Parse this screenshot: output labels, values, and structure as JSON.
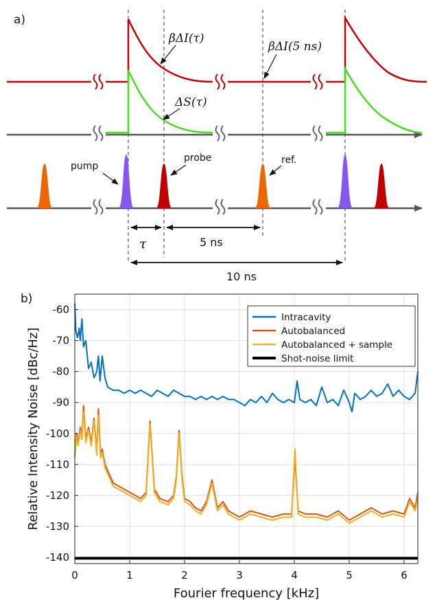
{
  "panel_a": {
    "label": "a)",
    "labels": {
      "dI_tau": "βΔI(τ)",
      "dI_5ns": "βΔI(5 ns)",
      "dS_tau": "ΔS(τ)",
      "pump": "pump",
      "probe": "probe",
      "ref": "ref.",
      "tau": "τ",
      "five_ns": "5 ns",
      "ten_ns": "10 ns"
    },
    "colors": {
      "dI_trace": "#c00000",
      "dS_trace": "#44dd22",
      "axis": "#555555",
      "pump_pulse": "#8855ee",
      "probe_pulse": "#c00000",
      "ref_pulse": "#ee6600"
    }
  },
  "chart_data": {
    "type": "line",
    "panel_label": "b)",
    "xlabel": "Fourier frequency [kHz]",
    "ylabel": "Relative Intensity Noise [dBc/Hz]",
    "xlim": [
      0,
      6.25
    ],
    "ylim": [
      -142,
      -55
    ],
    "xticks": [
      "0",
      "1",
      "2",
      "3",
      "4",
      "5",
      "6"
    ],
    "yticks": [
      "-60",
      "-70",
      "-80",
      "-90",
      "-100",
      "-110",
      "-120",
      "-130",
      "-140"
    ],
    "grid": true,
    "legend_position": "top-right",
    "series": [
      {
        "name": "Intracavity",
        "color": "#0072bd",
        "x": [
          0,
          0.02,
          0.05,
          0.08,
          0.1,
          0.13,
          0.16,
          0.2,
          0.25,
          0.3,
          0.35,
          0.4,
          0.43,
          0.46,
          0.5,
          0.55,
          0.6,
          0.7,
          0.8,
          0.9,
          1.0,
          1.1,
          1.2,
          1.3,
          1.4,
          1.5,
          1.6,
          1.7,
          1.8,
          1.9,
          2.0,
          2.1,
          2.2,
          2.3,
          2.4,
          2.5,
          2.6,
          2.7,
          2.8,
          2.9,
          3.0,
          3.1,
          3.2,
          3.3,
          3.4,
          3.5,
          3.6,
          3.7,
          3.8,
          3.9,
          4.0,
          4.05,
          4.1,
          4.2,
          4.3,
          4.4,
          4.5,
          4.6,
          4.7,
          4.8,
          4.9,
          5.0,
          5.05,
          5.1,
          5.2,
          5.3,
          5.4,
          5.5,
          5.6,
          5.7,
          5.8,
          5.9,
          6.0,
          6.1,
          6.2,
          6.25
        ],
        "values": [
          -58,
          -67,
          -69,
          -66,
          -70,
          -63,
          -72,
          -70,
          -79,
          -77,
          -82,
          -80,
          -75,
          -83,
          -75,
          -82,
          -85,
          -86,
          -86,
          -87,
          -86,
          -87,
          -86,
          -87,
          -88,
          -86,
          -87,
          -88,
          -86,
          -87,
          -88,
          -88,
          -89,
          -88,
          -89,
          -88,
          -89,
          -88,
          -89,
          -89,
          -90,
          -91,
          -89,
          -90,
          -88,
          -90,
          -87,
          -89,
          -90,
          -89,
          -90,
          -83,
          -89,
          -90,
          -89,
          -91,
          -85,
          -90,
          -89,
          -91,
          -86,
          -90,
          -93,
          -87,
          -89,
          -88,
          -86,
          -88,
          -87,
          -84,
          -88,
          -86,
          -88,
          -89,
          -87,
          -80
        ]
      },
      {
        "name": "Autobalanced",
        "color": "#d95319",
        "x": [
          0,
          0.03,
          0.06,
          0.1,
          0.13,
          0.16,
          0.2,
          0.25,
          0.3,
          0.35,
          0.4,
          0.43,
          0.47,
          0.5,
          0.55,
          0.6,
          0.7,
          0.8,
          0.9,
          1.0,
          1.1,
          1.2,
          1.3,
          1.37,
          1.45,
          1.55,
          1.7,
          1.8,
          1.85,
          1.9,
          1.95,
          2.0,
          2.1,
          2.2,
          2.3,
          2.4,
          2.5,
          2.6,
          2.7,
          2.8,
          2.9,
          3.0,
          3.2,
          3.4,
          3.6,
          3.8,
          3.95,
          4.01,
          4.07,
          4.2,
          4.4,
          4.6,
          4.8,
          5.0,
          5.2,
          5.4,
          5.6,
          5.8,
          6.0,
          6.1,
          6.2,
          6.25
        ],
        "values": [
          -107,
          -100,
          -103,
          -98,
          -101,
          -91,
          -102,
          -98,
          -103,
          -95,
          -106,
          -92,
          -107,
          -105,
          -110,
          -112,
          -116,
          -117,
          -118,
          -119,
          -120,
          -121,
          -119,
          -96,
          -118,
          -121,
          -122,
          -120,
          -114,
          -99,
          -113,
          -121,
          -122,
          -124,
          -125,
          -122,
          -115,
          -124,
          -122,
          -125,
          -126,
          -127,
          -125,
          -126,
          -127,
          -126,
          -126,
          -108,
          -125,
          -126,
          -126,
          -127,
          -125,
          -128,
          -126,
          -124,
          -126,
          -125,
          -126,
          -121,
          -124,
          -119
        ]
      },
      {
        "name": "Autobalanced + sample",
        "color": "#edb120",
        "x": [
          0,
          0.03,
          0.06,
          0.1,
          0.13,
          0.16,
          0.2,
          0.25,
          0.3,
          0.35,
          0.4,
          0.43,
          0.47,
          0.5,
          0.55,
          0.6,
          0.7,
          0.8,
          0.9,
          1.0,
          1.1,
          1.2,
          1.3,
          1.37,
          1.45,
          1.55,
          1.7,
          1.8,
          1.85,
          1.9,
          1.95,
          2.0,
          2.1,
          2.2,
          2.3,
          2.4,
          2.5,
          2.6,
          2.7,
          2.8,
          2.9,
          3.0,
          3.2,
          3.4,
          3.6,
          3.8,
          3.95,
          4.01,
          4.07,
          4.2,
          4.4,
          4.6,
          4.8,
          5.0,
          5.2,
          5.4,
          5.6,
          5.8,
          6.0,
          6.1,
          6.2,
          6.25
        ],
        "values": [
          -108,
          -101,
          -104,
          -99,
          -102,
          -93,
          -103,
          -99,
          -104,
          -96,
          -107,
          -94,
          -108,
          -106,
          -111,
          -113,
          -117,
          -118,
          -119,
          -120,
          -121,
          -122,
          -120,
          -97,
          -119,
          -122,
          -123,
          -121,
          -115,
          -100,
          -114,
          -122,
          -123,
          -125,
          -126,
          -123,
          -116,
          -125,
          -123,
          -126,
          -127,
          -128,
          -126,
          -127,
          -128,
          -127,
          -127,
          -105,
          -126,
          -127,
          -127,
          -128,
          -126,
          -129,
          -127,
          -125,
          -127,
          -126,
          -127,
          -122,
          -125,
          -121
        ]
      },
      {
        "name": "Shot-noise limit",
        "color": "#000000",
        "x": [
          0,
          6.25
        ],
        "values": [
          -140.3,
          -140.3
        ]
      }
    ]
  }
}
